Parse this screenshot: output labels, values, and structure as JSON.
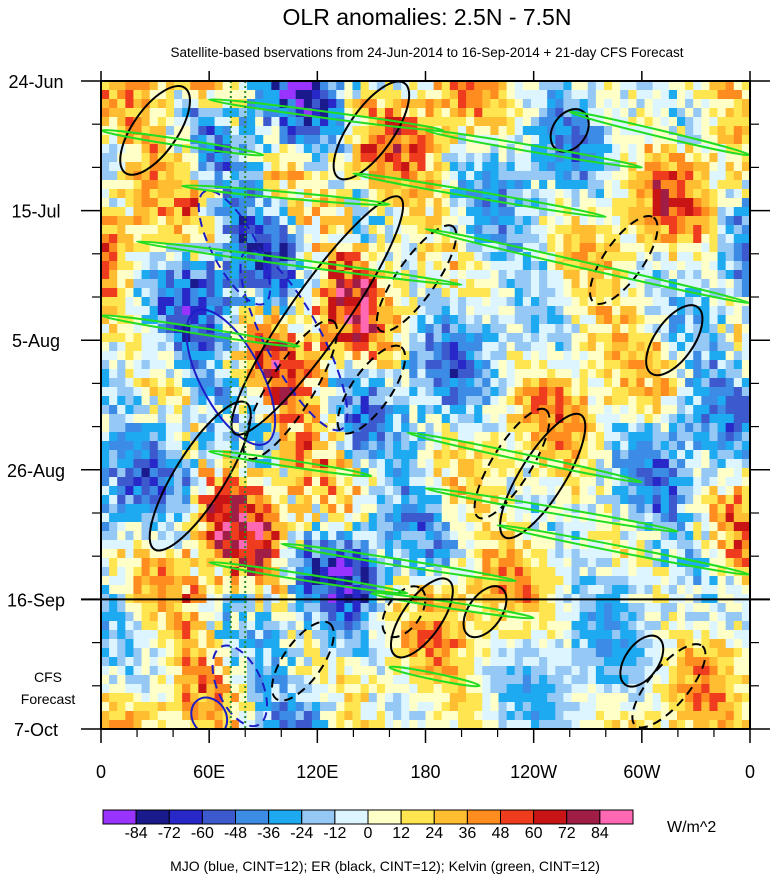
{
  "chart_data": {
    "type": "heatmap",
    "title": "OLR anomalies: 2.5N - 7.5N",
    "subtitle": "Satellite-based bservations from 24-Jun-2014 to 16-Sep-2014 + 21-day CFS Forecast",
    "x_ticks": [
      {
        "label": "0",
        "lon": 0
      },
      {
        "label": "60E",
        "lon": 60
      },
      {
        "label": "120E",
        "lon": 120
      },
      {
        "label": "180",
        "lon": 180
      },
      {
        "label": "120W",
        "lon": 240
      },
      {
        "label": "60W",
        "lon": 300
      },
      {
        "label": "0",
        "lon": 360
      }
    ],
    "x_range": [
      0,
      360
    ],
    "y_ticks": [
      {
        "label": "24-Jun",
        "day": 0
      },
      {
        "label": "15-Jul",
        "day": 21
      },
      {
        "label": "5-Aug",
        "day": 42
      },
      {
        "label": "26-Aug",
        "day": 63
      },
      {
        "label": "16-Sep",
        "day": 84
      },
      {
        "label": "7-Oct",
        "day": 105
      }
    ],
    "y_range": [
      0,
      105
    ],
    "y_direction": "time increases downward",
    "forecast_label": [
      "CFS",
      "Forecast"
    ],
    "forecast_start_day": 84,
    "reference_lines_lon": [
      72,
      80
    ],
    "colorbar": {
      "levels": [
        -84,
        -72,
        -60,
        -48,
        -36,
        -24,
        -12,
        0,
        12,
        24,
        36,
        48,
        60,
        72,
        84
      ],
      "colors": [
        "#9933ff",
        "#1a1a8c",
        "#2828c8",
        "#3c5acd",
        "#3c8ce6",
        "#1eaaf0",
        "#96c8f5",
        "#dcf5ff",
        "#ffffc8",
        "#ffe650",
        "#ffbe32",
        "#ff8c1e",
        "#f03c1e",
        "#c81414",
        "#a01e46",
        "#ff69b4"
      ],
      "tick_labels": [
        "-84",
        "-72",
        "-60",
        "-48",
        "-36",
        "-24",
        "-12",
        "0",
        "12",
        "24",
        "36",
        "48",
        "60",
        "72",
        "84"
      ],
      "units": "W/m^2"
    },
    "footer": "MJO (blue, CINT=12); ER (black, CINT=12); Kelvin (green, CINT=12)",
    "contour_colors": {
      "mjo": "#1e1ec8",
      "er": "#000000",
      "kelvin": "#22dd22"
    },
    "mjo_contours": [
      {
        "lon": 74,
        "day": 27,
        "rx": 22,
        "ry": 4,
        "rot": 62,
        "dash": true
      },
      {
        "lon": 107,
        "day": 42,
        "rx": 35,
        "ry": 5,
        "rot": 62,
        "dash": true
      },
      {
        "lon": 72,
        "day": 48,
        "rx": 26,
        "ry": 5.5,
        "rot": 62,
        "dash": false
      },
      {
        "lon": 77,
        "day": 98,
        "rx": 15,
        "ry": 4,
        "rot": 65,
        "dash": true
      },
      {
        "lon": 60,
        "day": 103,
        "rx": 7,
        "ry": 3,
        "rot": 55,
        "dash": false
      }
    ],
    "er_contours": [
      {
        "lon": 30,
        "day": 8,
        "rx": 18,
        "ry": 4,
        "rot": -55,
        "dash": false
      },
      {
        "lon": 120,
        "day": 38,
        "rx": 50,
        "ry": 5,
        "rot": -55,
        "dash": false
      },
      {
        "lon": 175,
        "day": 32,
        "rx": 22,
        "ry": 3.5,
        "rot": -55,
        "dash": true
      },
      {
        "lon": 150,
        "day": 8,
        "rx": 20,
        "ry": 4,
        "rot": -55,
        "dash": false
      },
      {
        "lon": 55,
        "day": 64,
        "rx": 30,
        "ry": 4.5,
        "rot": -58,
        "dash": false
      },
      {
        "lon": 105,
        "day": 50,
        "rx": 28,
        "ry": 4,
        "rot": -58,
        "dash": true
      },
      {
        "lon": 150,
        "day": 50,
        "rx": 18,
        "ry": 3.5,
        "rot": -55,
        "dash": true
      },
      {
        "lon": 245,
        "day": 64,
        "rx": 25,
        "ry": 4,
        "rot": -58,
        "dash": false
      },
      {
        "lon": 228,
        "day": 62,
        "rx": 22,
        "ry": 3.5,
        "rot": -58,
        "dash": true
      },
      {
        "lon": 290,
        "day": 29,
        "rx": 18,
        "ry": 3.5,
        "rot": -55,
        "dash": true
      },
      {
        "lon": 318,
        "day": 42,
        "rx": 14,
        "ry": 3.5,
        "rot": -55,
        "dash": false
      },
      {
        "lon": 260,
        "day": 8,
        "rx": 8,
        "ry": 3,
        "rot": -55,
        "dash": false
      },
      {
        "lon": 178,
        "day": 87,
        "rx": 16,
        "ry": 3.5,
        "rot": -55,
        "dash": false
      },
      {
        "lon": 112,
        "day": 94,
        "rx": 16,
        "ry": 3.5,
        "rot": -55,
        "dash": true
      },
      {
        "lon": 213,
        "day": 86,
        "rx": 10,
        "ry": 3,
        "rot": -55,
        "dash": false
      },
      {
        "lon": 300,
        "day": 94,
        "rx": 10,
        "ry": 3,
        "rot": -55,
        "dash": false
      },
      {
        "lon": 315,
        "day": 98,
        "rx": 18,
        "ry": 3.5,
        "rot": -50,
        "dash": true
      },
      {
        "lon": 168,
        "day": 86,
        "rx": 10,
        "ry": 3,
        "rot": -55,
        "dash": true
      }
    ],
    "kelvin_contours": [
      {
        "lon1": 0,
        "day1": 8,
        "lon2": 90,
        "day2": 12
      },
      {
        "lon1": 45,
        "day1": 17,
        "lon2": 160,
        "day2": 20
      },
      {
        "lon1": 60,
        "day1": 3,
        "lon2": 190,
        "day2": 8
      },
      {
        "lon1": 140,
        "day1": 15,
        "lon2": 280,
        "day2": 22
      },
      {
        "lon1": 260,
        "day1": 5,
        "lon2": 360,
        "day2": 12
      },
      {
        "lon1": 180,
        "day1": 8,
        "lon2": 300,
        "day2": 14
      },
      {
        "lon1": 20,
        "day1": 26,
        "lon2": 200,
        "day2": 33
      },
      {
        "lon1": 180,
        "day1": 24,
        "lon2": 360,
        "day2": 36
      },
      {
        "lon1": 0,
        "day1": 38,
        "lon2": 110,
        "day2": 43
      },
      {
        "lon1": 60,
        "day1": 60,
        "lon2": 150,
        "day2": 64
      },
      {
        "lon1": 170,
        "day1": 57,
        "lon2": 300,
        "day2": 65
      },
      {
        "lon1": 180,
        "day1": 66,
        "lon2": 320,
        "day2": 73
      },
      {
        "lon1": 220,
        "day1": 72,
        "lon2": 360,
        "day2": 80
      },
      {
        "lon1": 100,
        "day1": 75,
        "lon2": 230,
        "day2": 81
      },
      {
        "lon1": 60,
        "day1": 78,
        "lon2": 170,
        "day2": 83
      },
      {
        "lon1": 150,
        "day1": 83,
        "lon2": 240,
        "day2": 87
      },
      {
        "lon1": 160,
        "day1": 95,
        "lon2": 210,
        "day2": 98
      }
    ]
  }
}
